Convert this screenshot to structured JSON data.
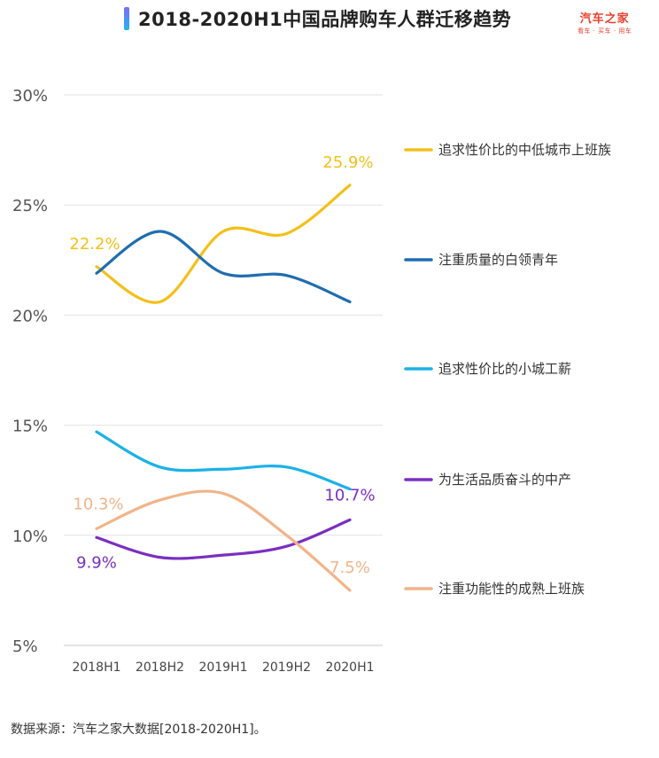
{
  "header": {
    "title": "2018-2020H1中国品牌购车人群迁移趋势",
    "logo_main": "汽车之家",
    "logo_sub": "看车 · 买车 · 用车"
  },
  "source": "数据来源：汽车之家大数据[2018-2020H1]。",
  "chart_data": {
    "type": "line",
    "title": "2018-2020H1中国品牌购车人群迁移趋势",
    "xlabel": "",
    "ylabel": "",
    "categories": [
      "2018H1",
      "2018H2",
      "2019H1",
      "2019H2",
      "2020H1"
    ],
    "ylim": [
      5,
      30
    ],
    "yticks": [
      "5%",
      "10%",
      "15%",
      "20%",
      "25%",
      "30%"
    ],
    "ytick_values": [
      5,
      10,
      15,
      20,
      25,
      30
    ],
    "grid": true,
    "legend_position": "right",
    "series": [
      {
        "name": "追求性价比的中低城市上班族",
        "color": "#f3c01a",
        "values": [
          22.2,
          20.6,
          23.8,
          23.7,
          25.9
        ],
        "labels": [
          {
            "index": 0,
            "text": "22.2%"
          },
          {
            "index": 4,
            "text": "25.9%"
          }
        ]
      },
      {
        "name": "注重质量的白领青年",
        "color": "#1f6db0",
        "values": [
          21.9,
          23.8,
          21.9,
          21.8,
          20.6
        ],
        "labels": []
      },
      {
        "name": "追求性价比的小城工薪",
        "color": "#1ab2e6",
        "values": [
          14.7,
          13.1,
          13.0,
          13.1,
          12.1
        ],
        "labels": []
      },
      {
        "name": "为生活品质奋斗的中产",
        "color": "#7a2fc0",
        "values": [
          9.9,
          9.0,
          9.1,
          9.5,
          10.7
        ],
        "labels": [
          {
            "index": 0,
            "text": "9.9%"
          },
          {
            "index": 4,
            "text": "10.7%"
          }
        ]
      },
      {
        "name": "注重功能性的成熟上班族",
        "color": "#f2b48a",
        "values": [
          10.3,
          11.6,
          11.9,
          10.0,
          7.5
        ],
        "labels": [
          {
            "index": 0,
            "text": "10.3%"
          },
          {
            "index": 4,
            "text": "7.5%"
          }
        ]
      }
    ]
  }
}
